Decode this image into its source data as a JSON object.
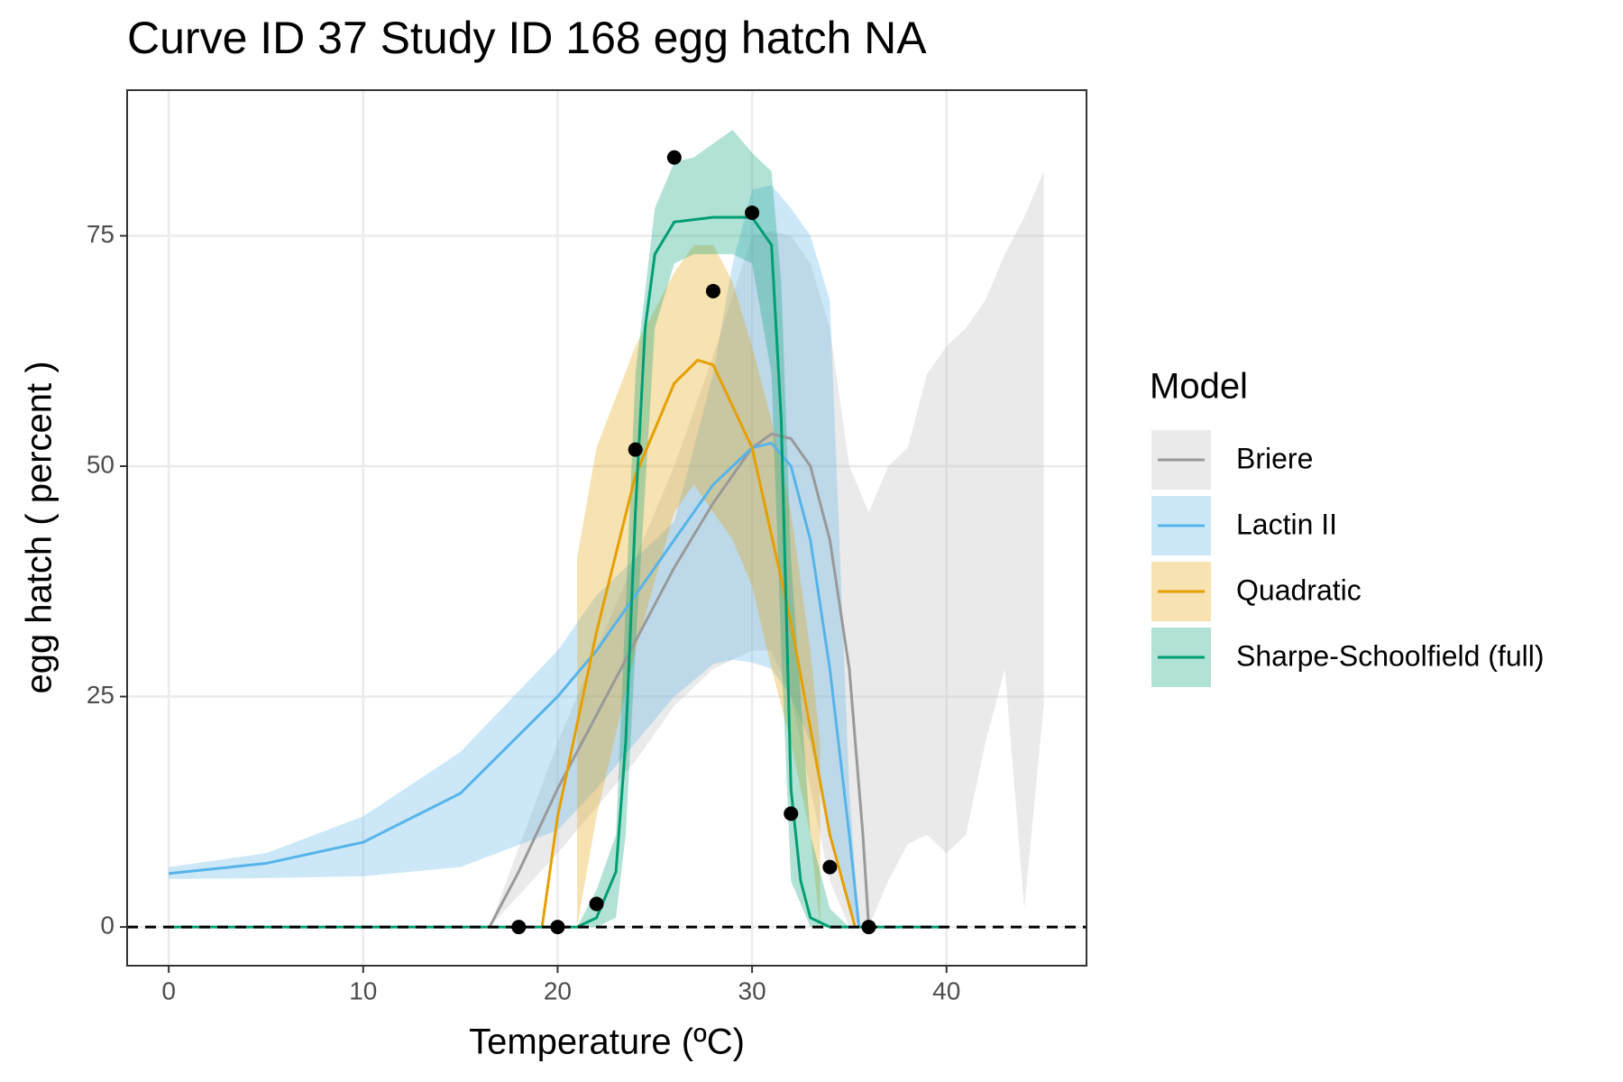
{
  "chart_data": {
    "type": "line",
    "title": "Curve ID 37 Study ID 168 egg hatch NA",
    "x_label": "Temperature (ºC)",
    "y_label": "egg hatch ( percent )",
    "legend_title": "Model",
    "legend_position": "right",
    "grid": true,
    "xlim": [
      -2.14,
      47.2
    ],
    "ylim": [
      -4.2,
      90.8
    ],
    "xticks": [
      0,
      10,
      20,
      30,
      40
    ],
    "yticks": [
      0,
      25,
      50,
      75
    ],
    "hline": 0,
    "series": [
      {
        "name": "Briere",
        "color": "#999999",
        "ribbon_color": "#bbbbbb",
        "x": [
          16.5,
          18,
          20,
          22,
          24,
          26,
          28,
          30,
          31,
          32,
          33,
          34,
          35,
          35.7,
          36
        ],
        "values": [
          0,
          6,
          15,
          23,
          31,
          39,
          46,
          52,
          53.5,
          53,
          50,
          42,
          28,
          10,
          0
        ],
        "ribbon": {
          "x": [
            16.5,
            20,
            24,
            26,
            28,
            30,
            31,
            32,
            33,
            34,
            35,
            36,
            37,
            38,
            39,
            40,
            41,
            42,
            43,
            44,
            45
          ],
          "upper": [
            0,
            20,
            40,
            50,
            62,
            75,
            75.5,
            75,
            72,
            65,
            50,
            45,
            50,
            52,
            60,
            63,
            65,
            68,
            73,
            77,
            82
          ],
          "lower": [
            0,
            8,
            18,
            24,
            28,
            30,
            30,
            25,
            15,
            5,
            0,
            0,
            5,
            9,
            10,
            8,
            10,
            20,
            28,
            2,
            24
          ]
        }
      },
      {
        "name": "Lactin II",
        "color": "#56B4E9",
        "ribbon_color": "#56B4E9",
        "x": [
          0,
          5,
          10,
          15,
          20,
          22,
          24,
          26,
          28,
          30,
          31,
          32,
          33,
          34,
          35,
          35.5
        ],
        "values": [
          5.8,
          6.9,
          9.2,
          14.5,
          25,
          30,
          36,
          42,
          48,
          52,
          52.5,
          50,
          42,
          28,
          10,
          0
        ],
        "ribbon": {
          "x": [
            0,
            5,
            10,
            15,
            20,
            22,
            24,
            26,
            28,
            29,
            30,
            31,
            32,
            33,
            34,
            35,
            35.5
          ],
          "upper": [
            6.5,
            8,
            12,
            19,
            30,
            36,
            40,
            44,
            60,
            72,
            80,
            80.5,
            78,
            75,
            68,
            15,
            0
          ],
          "lower": [
            5.2,
            5.3,
            5.5,
            6.5,
            10.5,
            15,
            20,
            25,
            28.5,
            29,
            28.7,
            28,
            25,
            20,
            10,
            2,
            0
          ]
        }
      },
      {
        "name": "Quadratic",
        "color": "#E69F00",
        "ribbon_color": "#E69F00",
        "x": [
          19.2,
          20,
          22,
          24,
          26,
          27.2,
          28,
          30,
          32,
          34,
          35.3
        ],
        "values": [
          0,
          12,
          32,
          49,
          59,
          61.5,
          61,
          52,
          33,
          10,
          0
        ],
        "ribbon": {
          "x": [
            21,
            22,
            24,
            26,
            27,
            28,
            29,
            30,
            31,
            32,
            33,
            33.5
          ],
          "upper": [
            40,
            52,
            63,
            71,
            74,
            74,
            70,
            63,
            55,
            45,
            30,
            20
          ],
          "lower": [
            0,
            12,
            30,
            45,
            48,
            45,
            42,
            37,
            28,
            20,
            10,
            0
          ]
        }
      },
      {
        "name": "Sharpe-Schoolfield (full)",
        "color": "#009E73",
        "ribbon_color": "#009E73",
        "x": [
          0,
          21,
          22,
          23,
          23.5,
          24,
          24.5,
          25,
          26,
          28,
          30,
          31,
          31.5,
          32,
          32.5,
          33,
          34,
          40
        ],
        "values": [
          0,
          0,
          1,
          6,
          20,
          45,
          65,
          73,
          76.5,
          77,
          77,
          74,
          55,
          15,
          5,
          1,
          0,
          0
        ],
        "ribbon": {
          "x": [
            21,
            22,
            23,
            23.5,
            24,
            25,
            26,
            27,
            28,
            29,
            30,
            31,
            31.5,
            32,
            33,
            34,
            35
          ],
          "upper": [
            0,
            4,
            10,
            35,
            60,
            78,
            83,
            83.5,
            85,
            86.5,
            84,
            82,
            70,
            40,
            10,
            2,
            0
          ],
          "lower": [
            0,
            0,
            1,
            10,
            30,
            65,
            72,
            73,
            73,
            73,
            72,
            60,
            30,
            5,
            0,
            0,
            0
          ]
        }
      }
    ],
    "points": {
      "color": "#000000",
      "x": [
        18,
        20,
        22,
        24,
        26,
        28,
        30,
        32,
        34,
        36
      ],
      "values": [
        0,
        0,
        2.5,
        51.8,
        83.5,
        69,
        77.5,
        12.3,
        6.5,
        0
      ]
    }
  }
}
